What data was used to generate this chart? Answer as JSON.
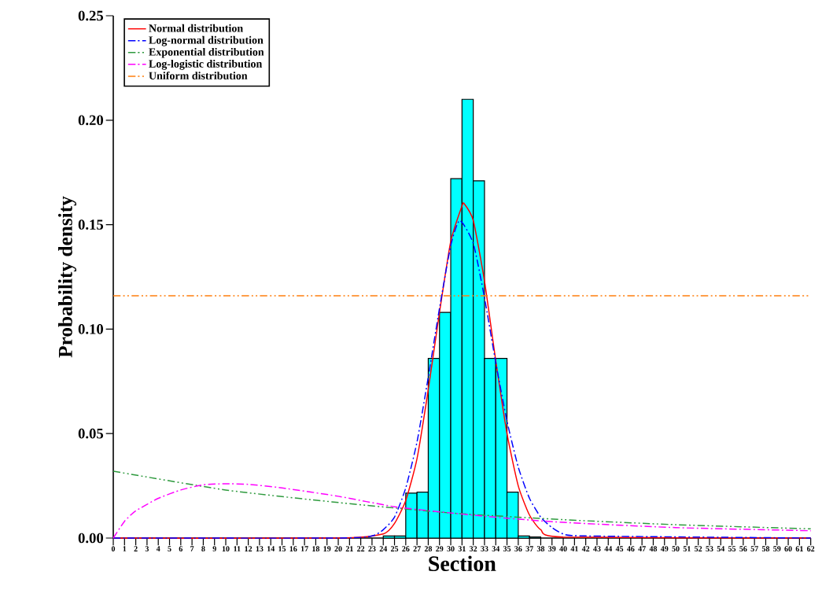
{
  "chart_data": {
    "type": "histogram",
    "xlabel": "Section",
    "ylabel": "Probability density",
    "xlim": [
      0,
      62
    ],
    "ylim": [
      0,
      0.25
    ],
    "xticks": [
      0,
      1,
      2,
      3,
      4,
      5,
      6,
      7,
      8,
      9,
      10,
      11,
      12,
      13,
      14,
      15,
      16,
      17,
      18,
      19,
      20,
      21,
      22,
      23,
      24,
      25,
      26,
      27,
      28,
      29,
      30,
      31,
      32,
      33,
      34,
      35,
      36,
      37,
      38,
      39,
      40,
      41,
      42,
      43,
      44,
      45,
      46,
      47,
      48,
      49,
      50,
      51,
      52,
      53,
      54,
      55,
      56,
      57,
      58,
      59,
      60,
      61,
      62
    ],
    "yticks": [
      {
        "value": 0,
        "label": "0.00"
      },
      {
        "value": 0.05,
        "label": "0.05"
      },
      {
        "value": 0.1,
        "label": "0.10"
      },
      {
        "value": 0.15,
        "label": "0.15"
      },
      {
        "value": 0.2,
        "label": "0.20"
      },
      {
        "value": 0.25,
        "label": "0.25"
      }
    ],
    "legend": "top left",
    "series": [
      {
        "type": "histogram",
        "color": "#00ffff",
        "bins": [
          0,
          1,
          2,
          3,
          4,
          5,
          6,
          7,
          8,
          9,
          10,
          11,
          12,
          13,
          14,
          15,
          16,
          17,
          18,
          19,
          20,
          21,
          22,
          23,
          24,
          25,
          26,
          27,
          28,
          29,
          30,
          31,
          32,
          33,
          34,
          35,
          36,
          37,
          38,
          39,
          40,
          41,
          42,
          43,
          44,
          45,
          46,
          47,
          48,
          49,
          50,
          51,
          52,
          53,
          54,
          55,
          56,
          57,
          58,
          59,
          60,
          61,
          62
        ],
        "values": [
          0,
          0,
          0,
          0,
          0,
          0,
          0,
          0,
          0,
          0,
          0,
          0,
          0,
          0,
          0,
          0,
          0,
          0,
          0,
          0,
          0,
          0,
          0,
          0,
          0.001,
          0.001,
          0.0215,
          0.022,
          0.086,
          0.108,
          0.172,
          0.21,
          0.171,
          0.086,
          0.086,
          0.022,
          0.001,
          0.0005,
          0,
          0,
          0,
          0,
          0,
          0,
          0,
          0,
          0,
          0,
          0,
          0,
          0,
          0,
          0,
          0,
          0,
          0,
          0,
          0,
          0,
          0,
          0,
          0
        ]
      },
      {
        "type": "line",
        "name": "Normal distribution",
        "color": "#ff0000",
        "line_style": "solid",
        "x": [
          0,
          20,
          24,
          25,
          26,
          27,
          28,
          29,
          30,
          31,
          31.2,
          32,
          33,
          34,
          35,
          36,
          37,
          38,
          40,
          62
        ],
        "values": [
          0,
          0,
          0.002,
          0.007,
          0.018,
          0.038,
          0.071,
          0.108,
          0.142,
          0.159,
          0.16,
          0.152,
          0.123,
          0.085,
          0.05,
          0.025,
          0.011,
          0.004,
          0.0005,
          0
        ]
      },
      {
        "type": "line",
        "name": "Log-normal distribution",
        "color": "#0000ff",
        "line_style": "dashdot",
        "x": [
          0,
          20,
          23,
          24,
          25,
          26,
          27,
          28,
          29,
          30,
          30.8,
          32,
          33,
          34,
          35,
          36,
          37,
          38,
          39,
          40,
          42,
          62
        ],
        "values": [
          0,
          0,
          0.001,
          0.004,
          0.01,
          0.024,
          0.046,
          0.077,
          0.11,
          0.14,
          0.152,
          0.141,
          0.115,
          0.084,
          0.056,
          0.034,
          0.019,
          0.01,
          0.005,
          0.002,
          0.001,
          0
        ]
      },
      {
        "type": "line",
        "name": "Exponential distribution",
        "color": "#2e9a3e",
        "line_style": "dashdotdot",
        "x": [
          0,
          10,
          20,
          30,
          40,
          50,
          62
        ],
        "values": [
          0.032,
          0.023,
          0.017,
          0.012,
          0.0088,
          0.0064,
          0.0044
        ]
      },
      {
        "type": "line",
        "name": "Log-logistic distribution",
        "color": "#ff00ff",
        "line_style": "dashdot",
        "x": [
          0,
          1,
          2,
          4,
          6,
          8,
          10,
          12,
          15,
          20,
          25,
          30,
          35,
          40,
          50,
          62
        ],
        "values": [
          0,
          0.008,
          0.013,
          0.019,
          0.023,
          0.0255,
          0.026,
          0.0257,
          0.024,
          0.02,
          0.015,
          0.012,
          0.0095,
          0.0075,
          0.005,
          0.0035
        ]
      },
      {
        "type": "line",
        "name": "Uniform distribution",
        "color": "#ff7f0e",
        "line_style": "dashdotdot",
        "x": [
          0,
          62
        ],
        "values": [
          0.116,
          0.116
        ]
      }
    ]
  }
}
